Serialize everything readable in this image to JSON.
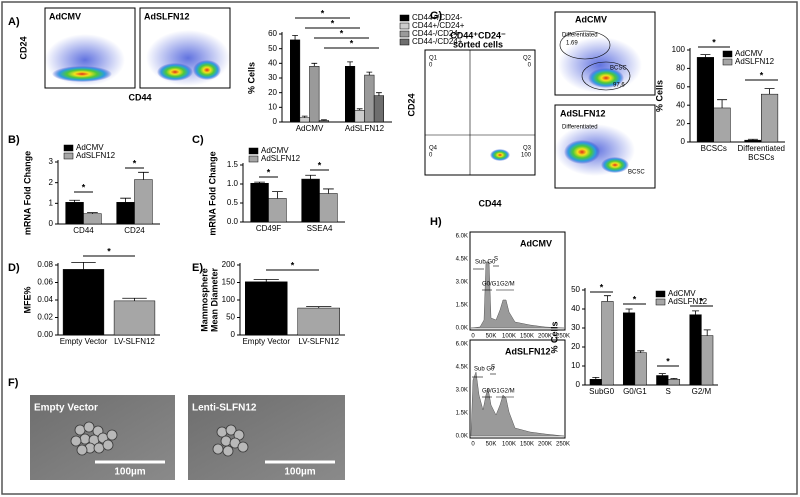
{
  "panel_labels": [
    "A)",
    "B)",
    "C)",
    "D)",
    "E)",
    "F)",
    "G)",
    "H)"
  ],
  "flow_a": {
    "samples": [
      "AdCMV",
      "AdSLFN12"
    ],
    "y_label": "CD24",
    "x_label": "CD44"
  },
  "flow_g": {
    "sorted_label": [
      "CD44⁺CD24⁻",
      "sorted cells"
    ],
    "quadrants": [
      "Q1",
      "Q2",
      "Q4",
      "Q3"
    ],
    "quadrant_values": [
      "0",
      "0",
      "0",
      "100"
    ],
    "samples": [
      "AdCMV",
      "AdSLFN12"
    ],
    "gates": [
      "Differentiated",
      "BCSC",
      "Differentiated",
      "BCSC"
    ],
    "gate_values": [
      "1.69",
      "97.6"
    ],
    "y_label": "CD24",
    "x_label": "CD44"
  },
  "cell_cycle": {
    "samples": [
      "AdCMV",
      "AdSLFN12"
    ],
    "gates": [
      "Sub G0",
      "S",
      "G0/G1",
      "G2/M"
    ],
    "x_ticks": [
      "0",
      "50K",
      "100K",
      "150K",
      "200K",
      "250K"
    ],
    "y_ticks": [
      "0.0K",
      "1.5K",
      "3.0K",
      "4.5K",
      "6.0K"
    ]
  },
  "images": {
    "titles": [
      "Empty Vector",
      "Lenti-SLFN12"
    ],
    "scale": "100µm"
  },
  "chart_data": [
    {
      "type": "bar",
      "y_label": "% Cells",
      "categories": [
        "AdCMV",
        "AdSLFN12"
      ],
      "series": [
        {
          "name": "CD44+/CD24-",
          "color": "#000000",
          "values": [
            56,
            38
          ],
          "errors": [
            3,
            3
          ]
        },
        {
          "name": "CD44+/CD24+",
          "color": "#cccccc",
          "values": [
            3,
            8
          ],
          "errors": [
            1,
            1
          ]
        },
        {
          "name": "CD44-/CD24-",
          "color": "#9a9a9a",
          "values": [
            38,
            32
          ],
          "errors": [
            2,
            2
          ]
        },
        {
          "name": "CD44-/CD24+",
          "color": "#6e6e6e",
          "values": [
            1,
            18
          ],
          "errors": [
            0.5,
            2
          ]
        }
      ],
      "ylim": [
        0,
        60
      ],
      "yticks": [
        0,
        10,
        20,
        30,
        40,
        50,
        60
      ],
      "legend": "right",
      "annotations": [
        "*",
        "*",
        "*",
        "*"
      ]
    },
    {
      "type": "bar",
      "y_label": "mRNA Fold Change",
      "categories": [
        "CD44",
        "CD24"
      ],
      "series": [
        {
          "name": "AdCMV",
          "color": "#000000",
          "values": [
            1.05,
            1.05
          ],
          "errors": [
            0.1,
            0.2
          ]
        },
        {
          "name": "AdSLFN12",
          "color": "#a6a6a6",
          "values": [
            0.5,
            2.15
          ],
          "errors": [
            0.05,
            0.35
          ]
        }
      ],
      "ylim": [
        0,
        3
      ],
      "yticks": [
        0,
        1,
        2,
        3
      ],
      "legend": "upper left",
      "annotations": [
        "*",
        "*"
      ]
    },
    {
      "type": "bar",
      "y_label": "mRNA Fold Change",
      "categories": [
        "CD49F",
        "SSEA4"
      ],
      "series": [
        {
          "name": "AdCMV",
          "color": "#000000",
          "values": [
            1.02,
            1.13
          ],
          "errors": [
            0.03,
            0.1
          ]
        },
        {
          "name": "AdSLFN12",
          "color": "#a6a6a6",
          "values": [
            0.62,
            0.75
          ],
          "errors": [
            0.18,
            0.12
          ]
        }
      ],
      "ylim": [
        0,
        1.5
      ],
      "yticks": [
        {
          "value": 0,
          "label": "0.0"
        },
        {
          "value": 0.5,
          "label": "0.5"
        },
        {
          "value": 1,
          "label": "1.0"
        },
        {
          "value": 1.5,
          "label": "1.5"
        }
      ],
      "legend": "upper left",
      "annotations": [
        "*",
        "*"
      ]
    },
    {
      "type": "bar",
      "y_label": "MFE%",
      "categories": [
        "Empty Vector",
        "LV-SLFN12"
      ],
      "values": [
        0.075,
        0.039
      ],
      "errors": [
        0.008,
        0.003
      ],
      "colors": [
        "#000000",
        "#a6a6a6"
      ],
      "ylim": [
        0,
        0.08
      ],
      "yticks": [
        {
          "value": 0,
          "label": "0.00"
        },
        {
          "value": 0.02,
          "label": "0.02"
        },
        {
          "value": 0.04,
          "label": "0.04"
        },
        {
          "value": 0.06,
          "label": "0.06"
        },
        {
          "value": 0.08,
          "label": "0.08"
        }
      ],
      "annotations": [
        "*"
      ]
    },
    {
      "type": "bar",
      "y_label": [
        "Mammosphere",
        "Mean Diameter"
      ],
      "categories": [
        "Empty Vector",
        "LV-SLFN12"
      ],
      "values": [
        152,
        77
      ],
      "errors": [
        7,
        4
      ],
      "colors": [
        "#000000",
        "#a6a6a6"
      ],
      "ylim": [
        0,
        200
      ],
      "yticks": [
        0,
        50,
        100,
        150,
        200
      ],
      "annotations": [
        "*"
      ]
    },
    {
      "type": "bar",
      "y_label": "% Cells",
      "categories": [
        "BCSCs",
        "Differentiated BCSCs"
      ],
      "series": [
        {
          "name": "AdCMV",
          "color": "#000000",
          "values": [
            92,
            2
          ],
          "errors": [
            3,
            1
          ]
        },
        {
          "name": "AdSLFN12",
          "color": "#a6a6a6",
          "values": [
            37,
            52
          ],
          "errors": [
            9,
            6
          ]
        }
      ],
      "ylim": [
        0,
        100
      ],
      "yticks": [
        0,
        20,
        40,
        60,
        80,
        100
      ],
      "legend": "upper right",
      "annotations": [
        "*",
        "*"
      ]
    },
    {
      "type": "bar",
      "y_label": "% Cells",
      "categories": [
        "SubG0",
        "G0/G1",
        "S",
        "G2/M"
      ],
      "series": [
        {
          "name": "AdCMV",
          "color": "#000000",
          "values": [
            3,
            38,
            5,
            37
          ],
          "errors": [
            1,
            2,
            1,
            2
          ]
        },
        {
          "name": "AdSLFN12",
          "color": "#a6a6a6",
          "values": [
            44,
            17,
            3,
            26
          ],
          "errors": [
            3,
            1,
            0.5,
            3
          ]
        }
      ],
      "ylim": [
        0,
        50
      ],
      "yticks": [
        0,
        10,
        20,
        30,
        40,
        50
      ],
      "legend": "upper right",
      "annotations": [
        "*",
        "*",
        "*",
        "*"
      ]
    }
  ]
}
